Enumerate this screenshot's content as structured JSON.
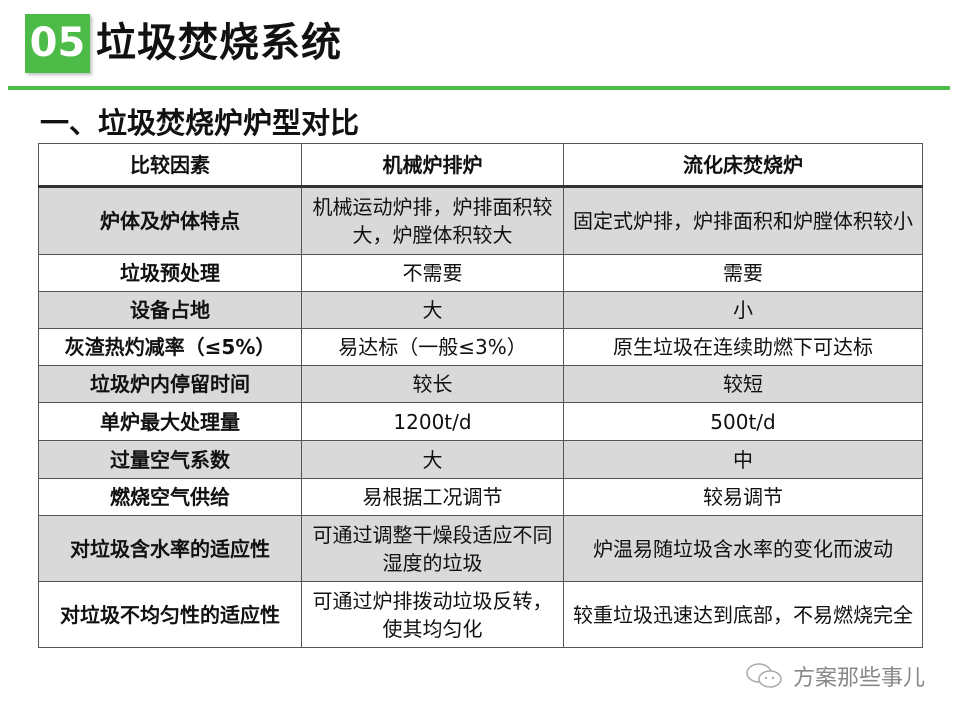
{
  "header": {
    "badge": "05",
    "title": "垃圾焚烧系统"
  },
  "subtitle": "一、垃圾焚烧炉炉型对比",
  "table": {
    "columns": [
      "比较因素",
      "机械炉排炉",
      "流化床焚烧炉"
    ],
    "rows": [
      {
        "factor": "炉体及炉体特点",
        "grate": "机械运动炉排，炉排面积较大，炉膛体积较大",
        "fluid": "固定式炉排，炉排面积和炉膛体积较小"
      },
      {
        "factor": "垃圾预处理",
        "grate": "不需要",
        "fluid": "需要"
      },
      {
        "factor": "设备占地",
        "grate": "大",
        "fluid": "小"
      },
      {
        "factor": "灰渣热灼减率（≤5%）",
        "grate": "易达标（一般≤3%）",
        "fluid": "原生垃圾在连续助燃下可达标"
      },
      {
        "factor": "垃圾炉内停留时间",
        "grate": "较长",
        "fluid": "较短"
      },
      {
        "factor": "单炉最大处理量",
        "grate": "1200t/d",
        "fluid": "500t/d"
      },
      {
        "factor": "过量空气系数",
        "grate": "大",
        "fluid": "中"
      },
      {
        "factor": "燃烧空气供给",
        "grate": "易根据工况调节",
        "fluid": "较易调节"
      },
      {
        "factor": "对垃圾含水率的适应性",
        "grate": "可通过调整干燥段适应不同湿度的垃圾",
        "fluid": "炉温易随垃圾含水率的变化而波动"
      },
      {
        "factor": "对垃圾不均匀性的适应性",
        "grate": "可通过炉排拨动垃圾反转，使其均匀化",
        "fluid": "较重垃圾迅速达到底部，不易燃烧完全"
      }
    ]
  },
  "watermark": {
    "icon": "wechat-icon",
    "text": "方案那些事儿"
  },
  "colors": {
    "accent": "#4cbb47",
    "shaded_row": "#d9d9d9"
  }
}
